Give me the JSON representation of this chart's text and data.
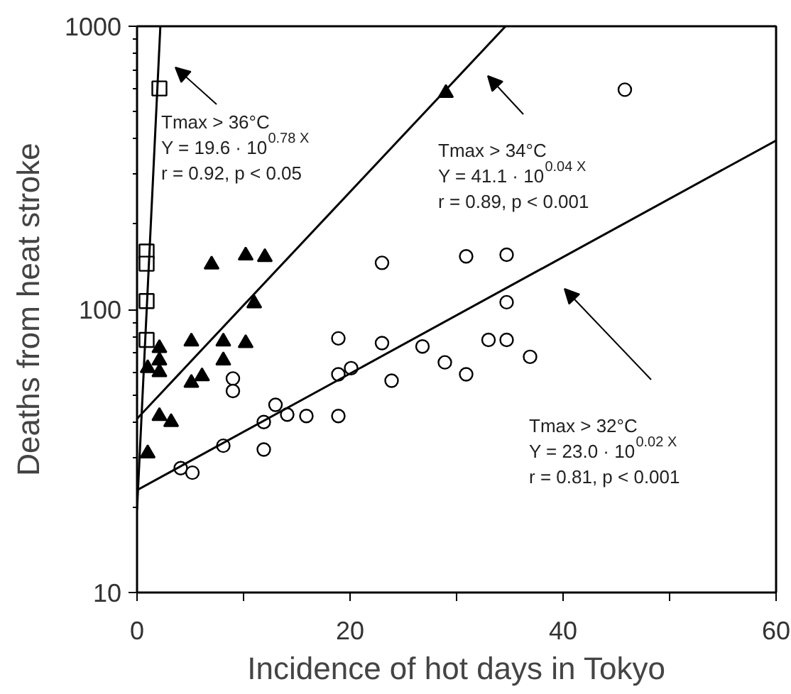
{
  "chart_data": {
    "type": "scatter",
    "xlabel": "Incidence of hot days in Tokyo",
    "ylabel": "Deaths from heat stroke",
    "log": "y",
    "grid": false,
    "xlim": [
      0,
      60
    ],
    "xticks": [
      0,
      {
        "value": 10,
        "label": null
      },
      20,
      {
        "value": 30,
        "label": null
      },
      40,
      {
        "value": 50,
        "label": null
      },
      60
    ],
    "ylim": [
      10,
      1000
    ],
    "yticks": [
      10,
      100,
      1000
    ],
    "series": [
      {
        "marker": "square",
        "color": "#000000",
        "x": [
          2.1,
          0.9,
          0.9,
          0.9,
          0.9
        ],
        "values": [
          603,
          160,
          145,
          107,
          78
        ]
      },
      {
        "marker": "triangle",
        "color": "#000000",
        "x": [
          29,
          7,
          10.2,
          12,
          11,
          5.1,
          8.1,
          10.2,
          8.1,
          2.1,
          2.1,
          1.0,
          2.1,
          5.1,
          6.1,
          2.1,
          3.2,
          1.0
        ],
        "values": [
          581,
          144,
          155,
          153,
          105,
          77,
          77,
          76,
          66,
          73,
          66,
          62,
          60,
          55,
          58,
          42,
          40,
          31
        ]
      },
      {
        "marker": "circle",
        "color": "#000000",
        "x": [
          45.8,
          23,
          30.9,
          34.7,
          34.7,
          18.9,
          23,
          26.8,
          33,
          34.7,
          36.9,
          28.9,
          30.9,
          18.9,
          20.1,
          23.9,
          9,
          9,
          13,
          14.1,
          15.9,
          18.9,
          11.9,
          11.9,
          8.1,
          4.1,
          5.2
        ],
        "values": [
          597,
          146,
          154,
          156,
          106,
          79,
          76,
          74,
          78,
          78,
          68,
          65,
          59,
          59,
          62,
          56,
          57,
          51.5,
          46,
          42.5,
          42,
          42,
          40,
          32,
          33,
          27.5,
          26.5
        ]
      },
      {
        "type": "line",
        "color": "#000000",
        "x": [
          0,
          2.19
        ],
        "values": [
          19.6,
          1000
        ]
      },
      {
        "type": "line",
        "color": "#000000",
        "x": [
          0,
          34.6
        ],
        "values": [
          41.1,
          1000
        ]
      },
      {
        "type": "line",
        "color": "#000000",
        "x": [
          0,
          60
        ],
        "values": [
          23,
          395
        ]
      }
    ],
    "annotations": [
      "Tmax > 36°C\nY = 19.6 · 10$^{0.78 X}$\nr = 0.92,  p < 0.05",
      "Tmax > 34°C\nY = 41.1 · 10$^{0.04 X}$\nr = 0.89,  p < 0.001",
      "Tmax > 32°C\nY = 23.0 · 10$^{0.02 X}$\nr = 0.81,  p < 0.001"
    ]
  }
}
